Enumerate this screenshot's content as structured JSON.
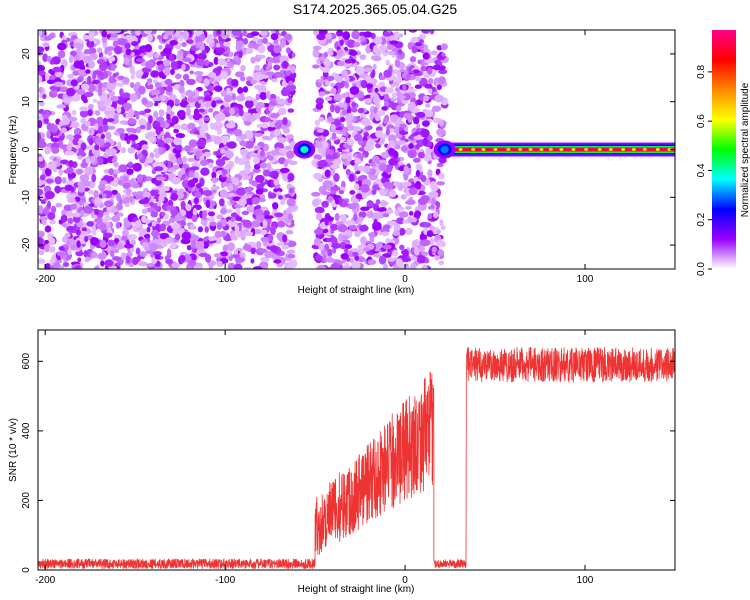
{
  "title": "S174.2025.365.05.04.G25",
  "chart_data": [
    {
      "type": "heatmap",
      "title": "S174.2025.365.05.04.G25",
      "xlabel": "Height of straight line (km)",
      "ylabel": "Frequency (Hz)",
      "xlim": [
        -204,
        150
      ],
      "ylim": [
        -25,
        25
      ],
      "x_ticks": [
        -200,
        -100,
        0,
        100
      ],
      "x_tick_labels": [
        "-200",
        "-100",
        "0",
        "100"
      ],
      "y_ticks": [
        -20,
        -10,
        0,
        10,
        20
      ],
      "y_tick_labels": [
        "-20",
        "-10",
        "0",
        "10",
        "20"
      ],
      "colorbar": {
        "label": "Normalized spectral amplitude",
        "range": [
          0,
          0.97
        ],
        "ticks": [
          0,
          0.2,
          0.4,
          0.6,
          0.8
        ],
        "tick_labels": [
          "0.0",
          "0.2",
          "0.4",
          "0.6",
          "0.8"
        ],
        "colormap": [
          "#ffffff",
          "#9900ff",
          "#0000ff",
          "#00ffff",
          "#00ff00",
          "#ffff00",
          "#ff8800",
          "#ff0000",
          "#ff0088"
        ]
      },
      "regions": [
        {
          "x": [
            -204,
            -62
          ],
          "freq": [
            -25,
            25
          ],
          "pattern": "noise",
          "amplitude": 0.15
        },
        {
          "x": [
            -62,
            -50
          ],
          "freq": [
            -25,
            25
          ],
          "pattern": "empty",
          "amplitude": 0
        },
        {
          "x": [
            -50,
            22
          ],
          "freq": [
            -25,
            25
          ],
          "pattern": "noise",
          "amplitude": 0.15
        },
        {
          "x": [
            22,
            150
          ],
          "freq": [
            0,
            0
          ],
          "pattern": "tone",
          "amplitude": 0.9
        }
      ],
      "features": [
        {
          "x": -56,
          "freq": 0,
          "amplitude": 0.4
        },
        {
          "x": 22,
          "freq": 0,
          "amplitude": 0.3
        }
      ]
    },
    {
      "type": "line",
      "xlabel": "Height of straight line (km)",
      "ylabel": "SNR (10 * v/v)",
      "xlim": [
        -204,
        150
      ],
      "ylim": [
        0,
        690
      ],
      "x_ticks": [
        -200,
        -100,
        0,
        100
      ],
      "x_tick_labels": [
        "-200",
        "-100",
        "0",
        "100"
      ],
      "y_ticks": [
        0,
        200,
        400,
        600
      ],
      "y_tick_labels": [
        "0",
        "200",
        "400",
        "600"
      ],
      "color": "#ee3333",
      "segments": [
        {
          "x": [
            -204,
            -50
          ],
          "snr_mean": 18,
          "snr_spread": 14
        },
        {
          "x": [
            -50,
            16
          ],
          "snr_start": 130,
          "snr_end": 430,
          "snr_spread": 140
        },
        {
          "x": [
            16,
            34
          ],
          "snr_mean": 18,
          "snr_spread": 12
        },
        {
          "x": [
            34,
            150
          ],
          "snr_mean": 590,
          "snr_spread": 50
        }
      ]
    }
  ]
}
